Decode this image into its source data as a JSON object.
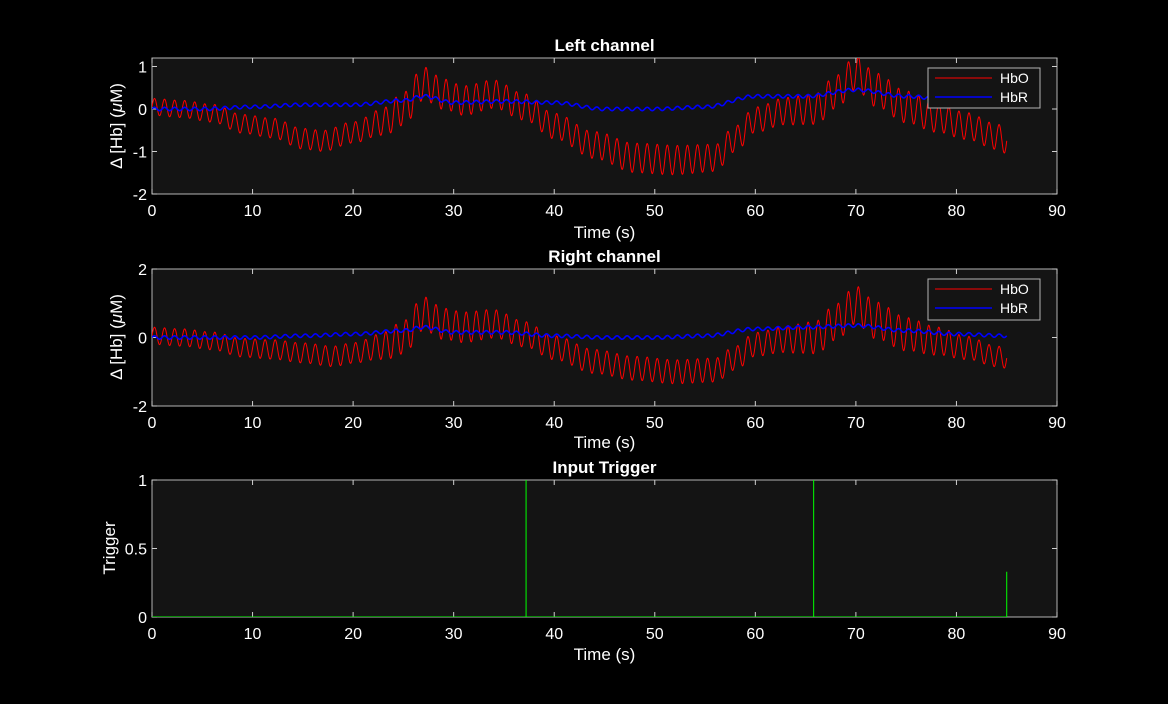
{
  "chart_data": [
    {
      "type": "line",
      "title": "Left channel",
      "xlabel": "Time (s)",
      "ylabel_prefix": "Δ  [Hb]  (",
      "ylabel_mu": "μ",
      "ylabel_suffix": "M)",
      "xlim": [
        0,
        90
      ],
      "ylim": [
        -2,
        1.2
      ],
      "xticks": [
        0,
        10,
        20,
        30,
        40,
        50,
        60,
        70,
        80,
        90
      ],
      "yticks": [
        -2,
        -1,
        0,
        1
      ],
      "oscillation_period_s": 1.0,
      "legend": {
        "position": "top-right"
      },
      "series": [
        {
          "name": "HbO",
          "color": "#ff0000",
          "baseline": [
            [
              0,
              0.05
            ],
            [
              3,
              0.0
            ],
            [
              6,
              -0.1
            ],
            [
              9,
              -0.35
            ],
            [
              12,
              -0.45
            ],
            [
              15,
              -0.7
            ],
            [
              17,
              -0.75
            ],
            [
              20,
              -0.55
            ],
            [
              23,
              -0.3
            ],
            [
              25,
              0.0
            ],
            [
              27,
              0.6
            ],
            [
              29,
              0.35
            ],
            [
              31,
              0.2
            ],
            [
              34,
              0.35
            ],
            [
              37,
              0.05
            ],
            [
              40,
              -0.4
            ],
            [
              44,
              -0.85
            ],
            [
              48,
              -1.15
            ],
            [
              52,
              -1.2
            ],
            [
              56,
              -1.15
            ],
            [
              58,
              -0.7
            ],
            [
              60,
              -0.25
            ],
            [
              63,
              -0.05
            ],
            [
              66,
              0.0
            ],
            [
              68,
              0.4
            ],
            [
              70,
              0.85
            ],
            [
              72,
              0.45
            ],
            [
              75,
              0.05
            ],
            [
              78,
              -0.2
            ],
            [
              81,
              -0.4
            ],
            [
              84,
              -0.65
            ],
            [
              85,
              -0.75
            ]
          ],
          "amplitude": [
            [
              0,
              0.2
            ],
            [
              20,
              0.25
            ],
            [
              26,
              0.4
            ],
            [
              30,
              0.35
            ],
            [
              40,
              0.3
            ],
            [
              50,
              0.35
            ],
            [
              60,
              0.3
            ],
            [
              70,
              0.4
            ],
            [
              85,
              0.3
            ]
          ]
        },
        {
          "name": "HbR",
          "color": "#0000ff",
          "baseline": [
            [
              0,
              0.0
            ],
            [
              5,
              0.0
            ],
            [
              10,
              0.05
            ],
            [
              15,
              0.1
            ],
            [
              20,
              0.1
            ],
            [
              25,
              0.2
            ],
            [
              27,
              0.3
            ],
            [
              30,
              0.15
            ],
            [
              35,
              0.18
            ],
            [
              40,
              0.15
            ],
            [
              45,
              0.0
            ],
            [
              50,
              0.0
            ],
            [
              55,
              0.05
            ],
            [
              60,
              0.3
            ],
            [
              65,
              0.3
            ],
            [
              70,
              0.45
            ],
            [
              75,
              0.3
            ],
            [
              80,
              0.2
            ],
            [
              85,
              0.1
            ]
          ],
          "amplitude": [
            [
              0,
              0.04
            ],
            [
              85,
              0.04
            ]
          ]
        }
      ]
    },
    {
      "type": "line",
      "title": "Right channel",
      "xlabel": "Time (s)",
      "ylabel_prefix": "Δ  [Hb]  (",
      "ylabel_mu": "μ",
      "ylabel_suffix": "M)",
      "xlim": [
        0,
        90
      ],
      "ylim": [
        -2,
        2
      ],
      "xticks": [
        0,
        10,
        20,
        30,
        40,
        50,
        60,
        70,
        80,
        90
      ],
      "yticks": [
        -2,
        0,
        2
      ],
      "oscillation_period_s": 1.0,
      "legend": {
        "position": "top-right"
      },
      "series": [
        {
          "name": "HbO",
          "color": "#ff0000",
          "baseline": [
            [
              0,
              0.05
            ],
            [
              3,
              0.0
            ],
            [
              6,
              -0.1
            ],
            [
              9,
              -0.3
            ],
            [
              12,
              -0.35
            ],
            [
              15,
              -0.45
            ],
            [
              18,
              -0.55
            ],
            [
              20,
              -0.45
            ],
            [
              23,
              -0.25
            ],
            [
              25,
              0.0
            ],
            [
              27,
              0.7
            ],
            [
              29,
              0.4
            ],
            [
              31,
              0.3
            ],
            [
              34,
              0.4
            ],
            [
              37,
              0.1
            ],
            [
              40,
              -0.3
            ],
            [
              44,
              -0.7
            ],
            [
              48,
              -0.9
            ],
            [
              52,
              -1.0
            ],
            [
              56,
              -0.95
            ],
            [
              58,
              -0.6
            ],
            [
              60,
              -0.2
            ],
            [
              63,
              -0.05
            ],
            [
              66,
              0.0
            ],
            [
              68,
              0.45
            ],
            [
              70,
              0.95
            ],
            [
              72,
              0.5
            ],
            [
              75,
              0.1
            ],
            [
              78,
              -0.1
            ],
            [
              81,
              -0.3
            ],
            [
              84,
              -0.55
            ],
            [
              85,
              -0.6
            ]
          ],
          "amplitude": [
            [
              0,
              0.25
            ],
            [
              20,
              0.3
            ],
            [
              26,
              0.5
            ],
            [
              30,
              0.45
            ],
            [
              40,
              0.35
            ],
            [
              50,
              0.35
            ],
            [
              60,
              0.35
            ],
            [
              70,
              0.55
            ],
            [
              85,
              0.3
            ]
          ]
        },
        {
          "name": "HbR",
          "color": "#0000ff",
          "baseline": [
            [
              0,
              0.0
            ],
            [
              5,
              0.0
            ],
            [
              10,
              0.0
            ],
            [
              15,
              0.05
            ],
            [
              20,
              0.1
            ],
            [
              25,
              0.2
            ],
            [
              27,
              0.3
            ],
            [
              30,
              0.15
            ],
            [
              35,
              0.15
            ],
            [
              40,
              0.05
            ],
            [
              45,
              0.0
            ],
            [
              50,
              0.0
            ],
            [
              55,
              0.05
            ],
            [
              60,
              0.25
            ],
            [
              65,
              0.3
            ],
            [
              70,
              0.35
            ],
            [
              75,
              0.2
            ],
            [
              80,
              0.1
            ],
            [
              85,
              0.05
            ]
          ],
          "amplitude": [
            [
              0,
              0.05
            ],
            [
              85,
              0.05
            ]
          ]
        }
      ]
    },
    {
      "type": "line",
      "title": "Input Trigger",
      "xlabel": "Time (s)",
      "ylabel": "Trigger",
      "xlim": [
        0,
        90
      ],
      "ylim": [
        0,
        1
      ],
      "xticks": [
        0,
        10,
        20,
        30,
        40,
        50,
        60,
        70,
        80,
        90
      ],
      "yticks": [
        0,
        0.5,
        1
      ],
      "series": [
        {
          "name": "Trigger",
          "color": "#00ff00",
          "pulses": [
            [
              37.2,
              1.0
            ],
            [
              65.8,
              1.0
            ],
            [
              85.0,
              0.33
            ]
          ],
          "end": 85.0
        }
      ]
    }
  ]
}
